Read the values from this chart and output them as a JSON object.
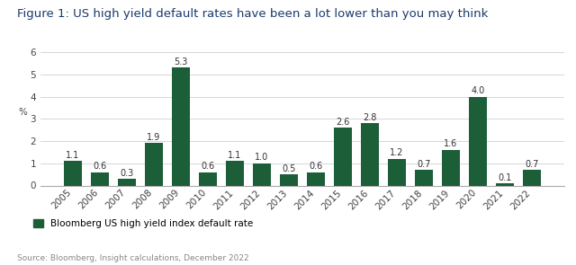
{
  "title": "Figure 1: US high yield default rates have been a lot lower than you may think",
  "years": [
    "2005",
    "2006",
    "2007",
    "2008",
    "2009",
    "2010",
    "2011",
    "2012",
    "2013",
    "2014",
    "2015",
    "2016",
    "2017",
    "2018",
    "2019",
    "2020",
    "2021",
    "2022"
  ],
  "values": [
    1.1,
    0.6,
    0.3,
    1.9,
    5.3,
    0.6,
    1.1,
    1.0,
    0.5,
    0.6,
    2.6,
    2.8,
    1.2,
    0.7,
    1.6,
    4.0,
    0.1,
    0.7
  ],
  "bar_color": "#1b5e38",
  "ylabel": "%",
  "ylim": [
    0,
    6.2
  ],
  "yticks": [
    0,
    1,
    2,
    3,
    4,
    5,
    6
  ],
  "legend_label": "Bloomberg US high yield index default rate",
  "source_text": "Source: Bloomberg, Insight calculations, December 2022",
  "background_color": "#ffffff",
  "title_color": "#1a3a6b",
  "title_fontsize": 9.5,
  "label_fontsize": 7.0,
  "axis_fontsize": 7.5,
  "source_fontsize": 6.5
}
